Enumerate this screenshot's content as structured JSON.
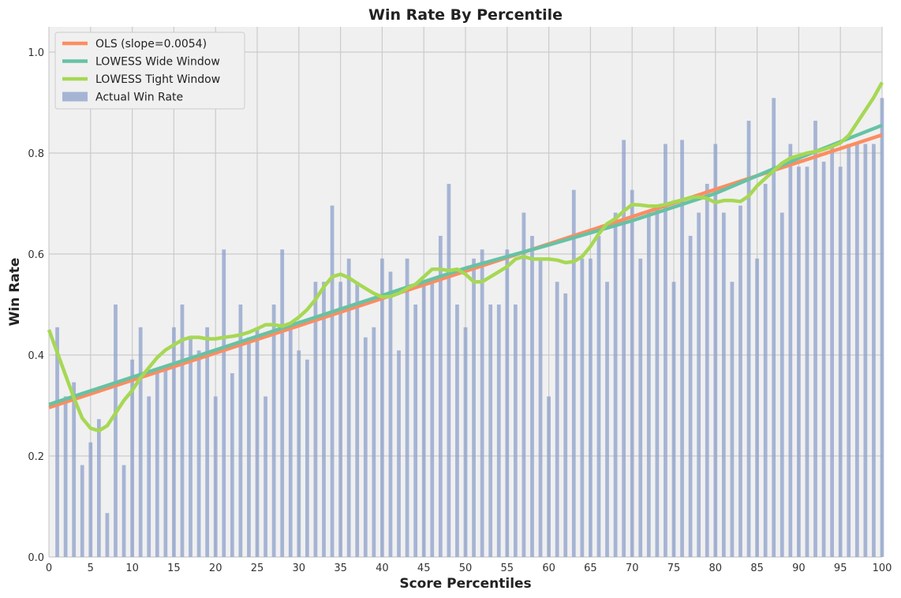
{
  "chart_data": {
    "type": "bar",
    "title": "Win Rate By Percentile",
    "xlabel": "Score Percentiles",
    "ylabel": "Win Rate",
    "xlim": [
      0,
      100
    ],
    "ylim": [
      0,
      1.05
    ],
    "xticks": [
      0,
      5,
      10,
      15,
      20,
      25,
      30,
      35,
      40,
      45,
      50,
      55,
      60,
      65,
      70,
      75,
      80,
      85,
      90,
      95,
      100
    ],
    "xtick_labels": [
      "0",
      "5",
      "10",
      "15",
      "20",
      "25",
      "30",
      "35",
      "40",
      "45",
      "50",
      "55",
      "60",
      "65",
      "70",
      "75",
      "80",
      "85",
      "90",
      "95",
      "100"
    ],
    "yticks": [
      0.0,
      0.2,
      0.4,
      0.6,
      0.8,
      1.0
    ],
    "ytick_labels": [
      "0.0",
      "0.2",
      "0.4",
      "0.6",
      "0.8",
      "1.0"
    ],
    "grid": true,
    "legend_position": "top-left",
    "bars": {
      "name": "Actual Win Rate",
      "color": "#8da0cb",
      "x": [
        1,
        2,
        3,
        4,
        5,
        6,
        7,
        8,
        9,
        10,
        11,
        12,
        13,
        14,
        15,
        16,
        17,
        18,
        19,
        20,
        21,
        22,
        23,
        24,
        25,
        26,
        27,
        28,
        29,
        30,
        31,
        32,
        33,
        34,
        35,
        36,
        37,
        38,
        39,
        40,
        41,
        42,
        43,
        44,
        45,
        46,
        47,
        48,
        49,
        50,
        51,
        52,
        53,
        54,
        55,
        56,
        57,
        58,
        59,
        60,
        61,
        62,
        63,
        64,
        65,
        66,
        67,
        68,
        69,
        70,
        71,
        72,
        73,
        74,
        75,
        76,
        77,
        78,
        79,
        80,
        81,
        82,
        83,
        84,
        85,
        86,
        87,
        88,
        89,
        90,
        91,
        92,
        93,
        94,
        95,
        96,
        97,
        98,
        99,
        100
      ],
      "values": [
        0.455,
        0.318,
        0.346,
        0.182,
        0.227,
        0.273,
        0.087,
        0.5,
        0.182,
        0.391,
        0.455,
        0.318,
        0.364,
        0.375,
        0.455,
        0.5,
        0.438,
        0.409,
        0.455,
        0.318,
        0.609,
        0.364,
        0.5,
        0.435,
        0.455,
        0.318,
        0.5,
        0.609,
        0.455,
        0.409,
        0.391,
        0.545,
        0.545,
        0.696,
        0.545,
        0.591,
        0.545,
        0.435,
        0.455,
        0.591,
        0.565,
        0.409,
        0.591,
        0.5,
        0.545,
        0.545,
        0.636,
        0.739,
        0.5,
        0.455,
        0.591,
        0.609,
        0.5,
        0.5,
        0.609,
        0.5,
        0.682,
        0.636,
        0.591,
        0.318,
        0.545,
        0.522,
        0.727,
        0.591,
        0.591,
        0.636,
        0.545,
        0.682,
        0.826,
        0.727,
        0.591,
        0.682,
        0.696,
        0.818,
        0.545,
        0.826,
        0.636,
        0.682,
        0.739,
        0.818,
        0.682,
        0.545,
        0.696,
        0.864,
        0.591,
        0.739,
        0.909,
        0.682,
        0.818,
        0.773,
        0.773,
        0.864,
        0.783,
        0.818,
        0.773,
        0.818,
        0.818,
        0.818,
        0.818,
        0.909
      ]
    },
    "series": [
      {
        "name": "OLS (slope=0.0054)",
        "color": "#fc8d62",
        "x": [
          0,
          100
        ],
        "y": [
          0.296,
          0.836
        ]
      },
      {
        "name": "LOWESS Wide Window",
        "color": "#66c2a5",
        "x": [
          0,
          10,
          20,
          30,
          40,
          50,
          60,
          70,
          80,
          90,
          100
        ],
        "y": [
          0.302,
          0.356,
          0.41,
          0.464,
          0.518,
          0.572,
          0.618,
          0.666,
          0.72,
          0.79,
          0.855
        ]
      },
      {
        "name": "LOWESS Tight Window",
        "color": "#a6d854",
        "x": [
          0,
          1,
          2,
          3,
          4,
          5,
          6,
          7,
          8,
          9,
          10,
          11,
          12,
          13,
          14,
          15,
          16,
          17,
          18,
          19,
          20,
          21,
          22,
          23,
          24,
          25,
          26,
          27,
          28,
          29,
          30,
          31,
          32,
          33,
          34,
          35,
          36,
          37,
          38,
          39,
          40,
          41,
          42,
          43,
          44,
          45,
          46,
          47,
          48,
          49,
          50,
          51,
          52,
          53,
          54,
          55,
          56,
          57,
          58,
          59,
          60,
          61,
          62,
          63,
          64,
          65,
          66,
          67,
          68,
          69,
          70,
          71,
          72,
          73,
          74,
          75,
          76,
          77,
          78,
          79,
          80,
          81,
          82,
          83,
          84,
          85,
          86,
          87,
          88,
          89,
          90,
          91,
          92,
          93,
          94,
          95,
          96,
          97,
          98,
          99,
          100
        ],
        "y": [
          0.45,
          0.405,
          0.36,
          0.315,
          0.275,
          0.255,
          0.25,
          0.26,
          0.285,
          0.31,
          0.33,
          0.355,
          0.375,
          0.395,
          0.41,
          0.42,
          0.43,
          0.435,
          0.435,
          0.432,
          0.432,
          0.435,
          0.437,
          0.44,
          0.445,
          0.452,
          0.46,
          0.46,
          0.457,
          0.463,
          0.475,
          0.49,
          0.51,
          0.535,
          0.555,
          0.56,
          0.553,
          0.542,
          0.532,
          0.522,
          0.515,
          0.516,
          0.522,
          0.532,
          0.54,
          0.555,
          0.57,
          0.57,
          0.567,
          0.57,
          0.56,
          0.545,
          0.545,
          0.555,
          0.565,
          0.575,
          0.59,
          0.595,
          0.59,
          0.59,
          0.59,
          0.588,
          0.583,
          0.585,
          0.595,
          0.615,
          0.64,
          0.66,
          0.67,
          0.685,
          0.698,
          0.697,
          0.695,
          0.695,
          0.698,
          0.703,
          0.707,
          0.712,
          0.713,
          0.71,
          0.702,
          0.706,
          0.706,
          0.704,
          0.715,
          0.735,
          0.75,
          0.765,
          0.78,
          0.79,
          0.795,
          0.8,
          0.803,
          0.807,
          0.813,
          0.82,
          0.835,
          0.86,
          0.885,
          0.91,
          0.94
        ]
      }
    ],
    "legend": [
      {
        "label": "OLS (slope=0.0054)",
        "color": "#fc8d62",
        "kind": "line"
      },
      {
        "label": "LOWESS Wide Window",
        "color": "#66c2a5",
        "kind": "line"
      },
      {
        "label": "LOWESS Tight Window",
        "color": "#a6d854",
        "kind": "line"
      },
      {
        "label": "Actual Win Rate",
        "color": "#8da0cb",
        "kind": "patch"
      }
    ],
    "colors": {
      "background": "#f0f0f0",
      "grid": "#cbcbcb"
    }
  }
}
